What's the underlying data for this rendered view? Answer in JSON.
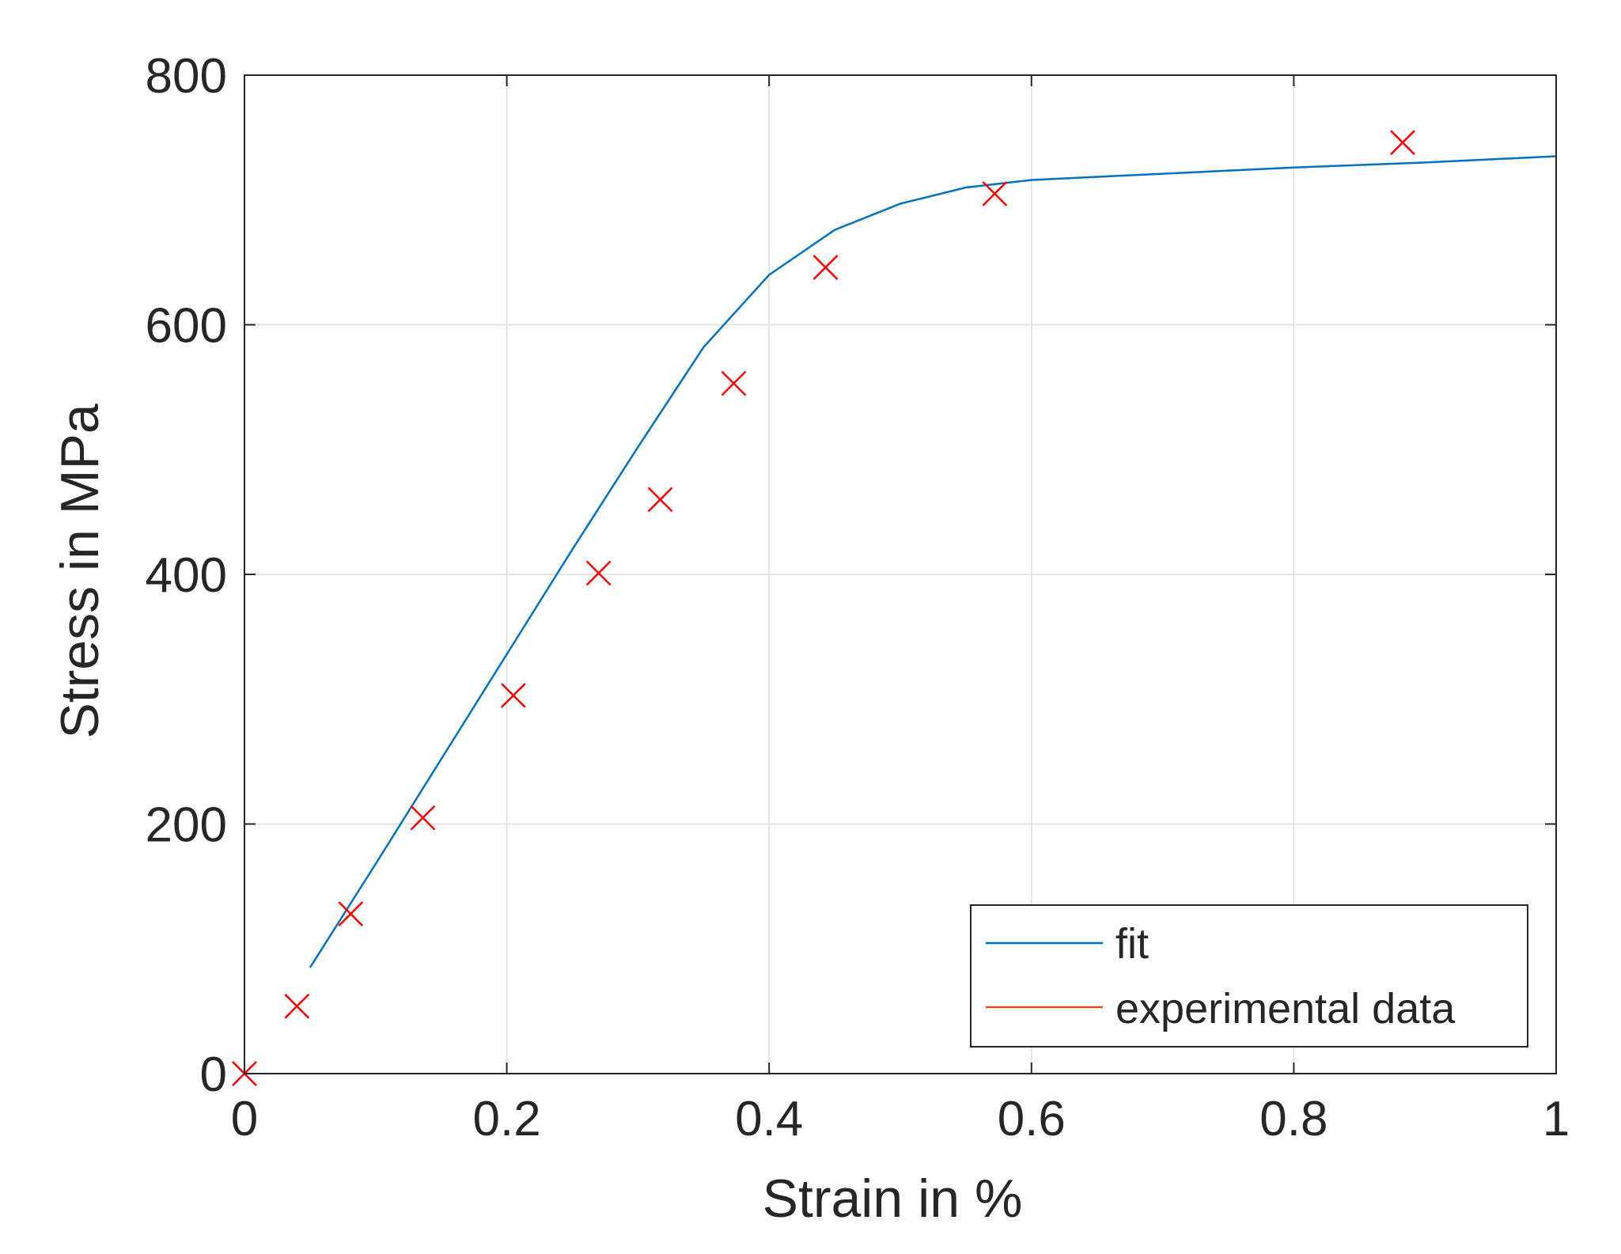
{
  "chart_data": {
    "type": "line",
    "title": "",
    "xlabel": "Strain in %",
    "ylabel": "Stress in MPa",
    "xlim": [
      0,
      1
    ],
    "ylim": [
      0,
      800
    ],
    "xticks": [
      0,
      0.2,
      0.4,
      0.6,
      0.8,
      1
    ],
    "xtick_labels": [
      "0",
      "0.2",
      "0.4",
      "0.6",
      "0.8",
      "1"
    ],
    "yticks": [
      0,
      200,
      400,
      600,
      800
    ],
    "ytick_labels": [
      "0",
      "200",
      "400",
      "600",
      "800"
    ],
    "grid": true,
    "legend": {
      "location": "bottom-right",
      "entries": [
        "fit",
        "experimental data"
      ]
    },
    "series": [
      {
        "name": "fit",
        "kind": "line",
        "color": "#0072BD",
        "x": [
          0.05,
          0.1,
          0.15,
          0.2,
          0.25,
          0.3,
          0.35,
          0.4,
          0.45,
          0.5,
          0.55,
          0.6,
          0.7,
          0.8,
          0.9,
          1.0
        ],
        "y": [
          85,
          168,
          252,
          336,
          420,
          502,
          582,
          640,
          676,
          697,
          710,
          716,
          721,
          726,
          730,
          735
        ]
      },
      {
        "name": "experimental data",
        "kind": "marker",
        "marker": "x",
        "color": "#FF0000",
        "legend_color": "#D95319",
        "x": [
          0.0,
          0.04,
          0.081,
          0.136,
          0.205,
          0.27,
          0.317,
          0.373,
          0.443,
          0.572,
          0.883
        ],
        "y": [
          0,
          54,
          128,
          205,
          303,
          401,
          460,
          553,
          646,
          705,
          746
        ]
      }
    ]
  }
}
